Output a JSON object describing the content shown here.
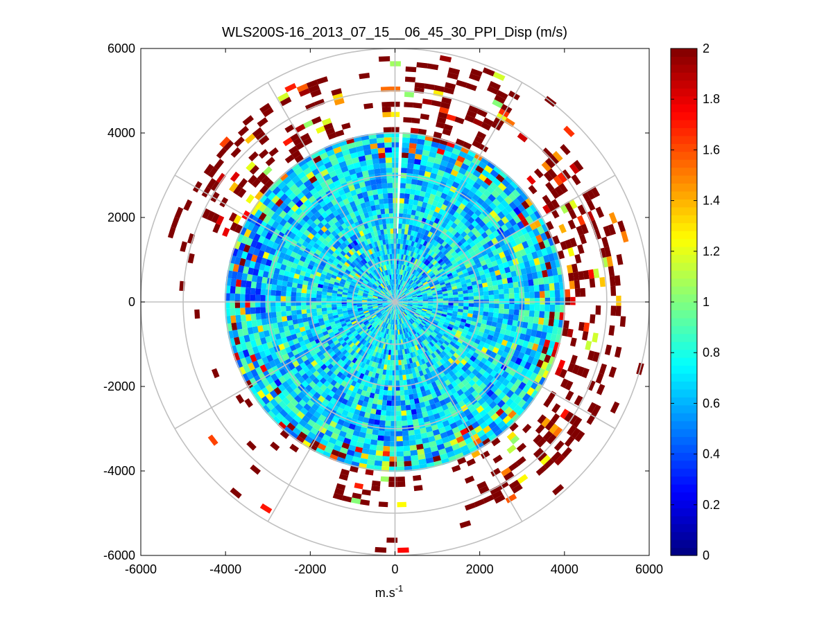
{
  "chart_data": {
    "type": "heatmap",
    "subtype": "polar-ppi-scan",
    "title": "WLS200S-16_2013_07_15__06_45_30_PPI_Disp (m/s)",
    "xlabel": "m.s",
    "xlabel_superscript": "-1",
    "ylabel": "",
    "xlim": [
      -6000,
      6000
    ],
    "ylim": [
      -6000,
      6000
    ],
    "x_ticks": [
      -6000,
      -4000,
      -2000,
      0,
      2000,
      4000,
      6000
    ],
    "y_ticks": [
      -6000,
      -4000,
      -2000,
      0,
      2000,
      4000,
      6000
    ],
    "x_tick_labels": [
      "-6000",
      "-4000",
      "-2000",
      "0",
      "2000",
      "4000",
      "6000"
    ],
    "y_tick_labels": [
      "-6000",
      "-4000",
      "-2000",
      "0",
      "2000",
      "4000",
      "6000"
    ],
    "polar_grid": {
      "range_rings": [
        1000,
        2000,
        3000,
        4000,
        5000,
        6000
      ],
      "spokes_deg": [
        0,
        30,
        60,
        90,
        120,
        150,
        180,
        210,
        240,
        270,
        300,
        330
      ],
      "color": "#c0c0c0"
    },
    "colorbar": {
      "min": 0,
      "max": 2,
      "ticks": [
        0,
        0.2,
        0.4,
        0.6,
        0.8,
        1,
        1.2,
        1.4,
        1.6,
        1.8,
        2
      ],
      "tick_labels": [
        "0",
        "0.2",
        "0.4",
        "0.6",
        "0.8",
        "1",
        "1.2",
        "1.4",
        "1.6",
        "1.8",
        "2"
      ],
      "colormap": "jet"
    },
    "field_summary": {
      "units": "m/s",
      "core_radius_m": 4000,
      "core_value_range": [
        0.5,
        0.9
      ],
      "outer_radius_m": 6000,
      "outer_value_range": [
        1.0,
        2.0
      ],
      "regions": [
        {
          "sector": "east",
          "azimuth_deg": [
            45,
            160
          ],
          "range_m": [
            3000,
            5400
          ],
          "value": 2.0
        },
        {
          "sector": "north",
          "azimuth_deg": [
            355,
            30
          ],
          "range_m": [
            4000,
            5900
          ],
          "value": 2.0
        },
        {
          "sector": "south",
          "azimuth_deg": [
            170,
            195
          ],
          "range_m": [
            3900,
            4800
          ],
          "value": 2.0
        },
        {
          "sector": "northwest",
          "azimuth_deg": [
            290,
            345
          ],
          "range_m": [
            3000,
            5500
          ],
          "value": 1.9
        },
        {
          "sector": "southeast",
          "azimuth_deg": [
            135,
            155
          ],
          "range_m": [
            3800,
            5300
          ],
          "value": 1.8
        },
        {
          "sector": "west",
          "azimuth_deg": [
            265,
            300
          ],
          "range_m": [
            3000,
            4500
          ],
          "value": 0.3
        }
      ]
    }
  }
}
